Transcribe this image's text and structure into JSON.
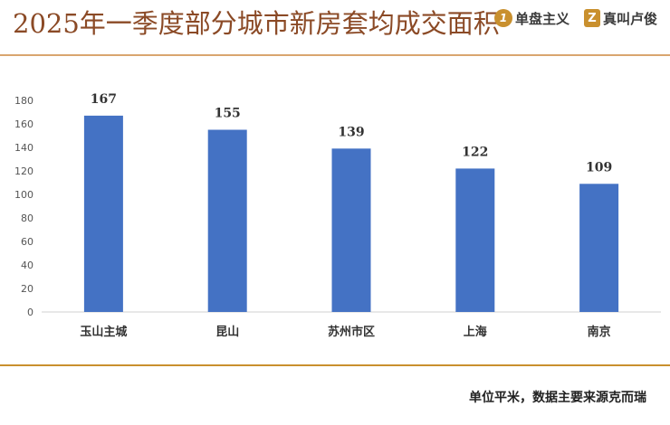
{
  "header": {
    "title": "2025年一季度部分城市新房套均成交面积",
    "brand1": "单盘主义",
    "brand2": "真叫卢俊",
    "brand1_icon": "number-one-logo-icon",
    "brand2_icon": "z-logo-icon",
    "accent_color": "#c9902e",
    "title_color": "#8b4a26"
  },
  "footnote": "单位平米，数据主要来源克而瑞",
  "chart_data": {
    "type": "bar",
    "categories": [
      "玉山主城",
      "昆山",
      "苏州市区",
      "上海",
      "南京"
    ],
    "values": [
      167,
      155,
      139,
      122,
      109
    ],
    "title": "2025年一季度部分城市新房套均成交面积",
    "xlabel": "",
    "ylabel": "",
    "ylim": [
      0,
      180
    ],
    "yticks": [
      0,
      20,
      40,
      60,
      80,
      100,
      120,
      140,
      160,
      180
    ],
    "bar_color": "#4472c4",
    "grid": false,
    "legend": "none"
  }
}
